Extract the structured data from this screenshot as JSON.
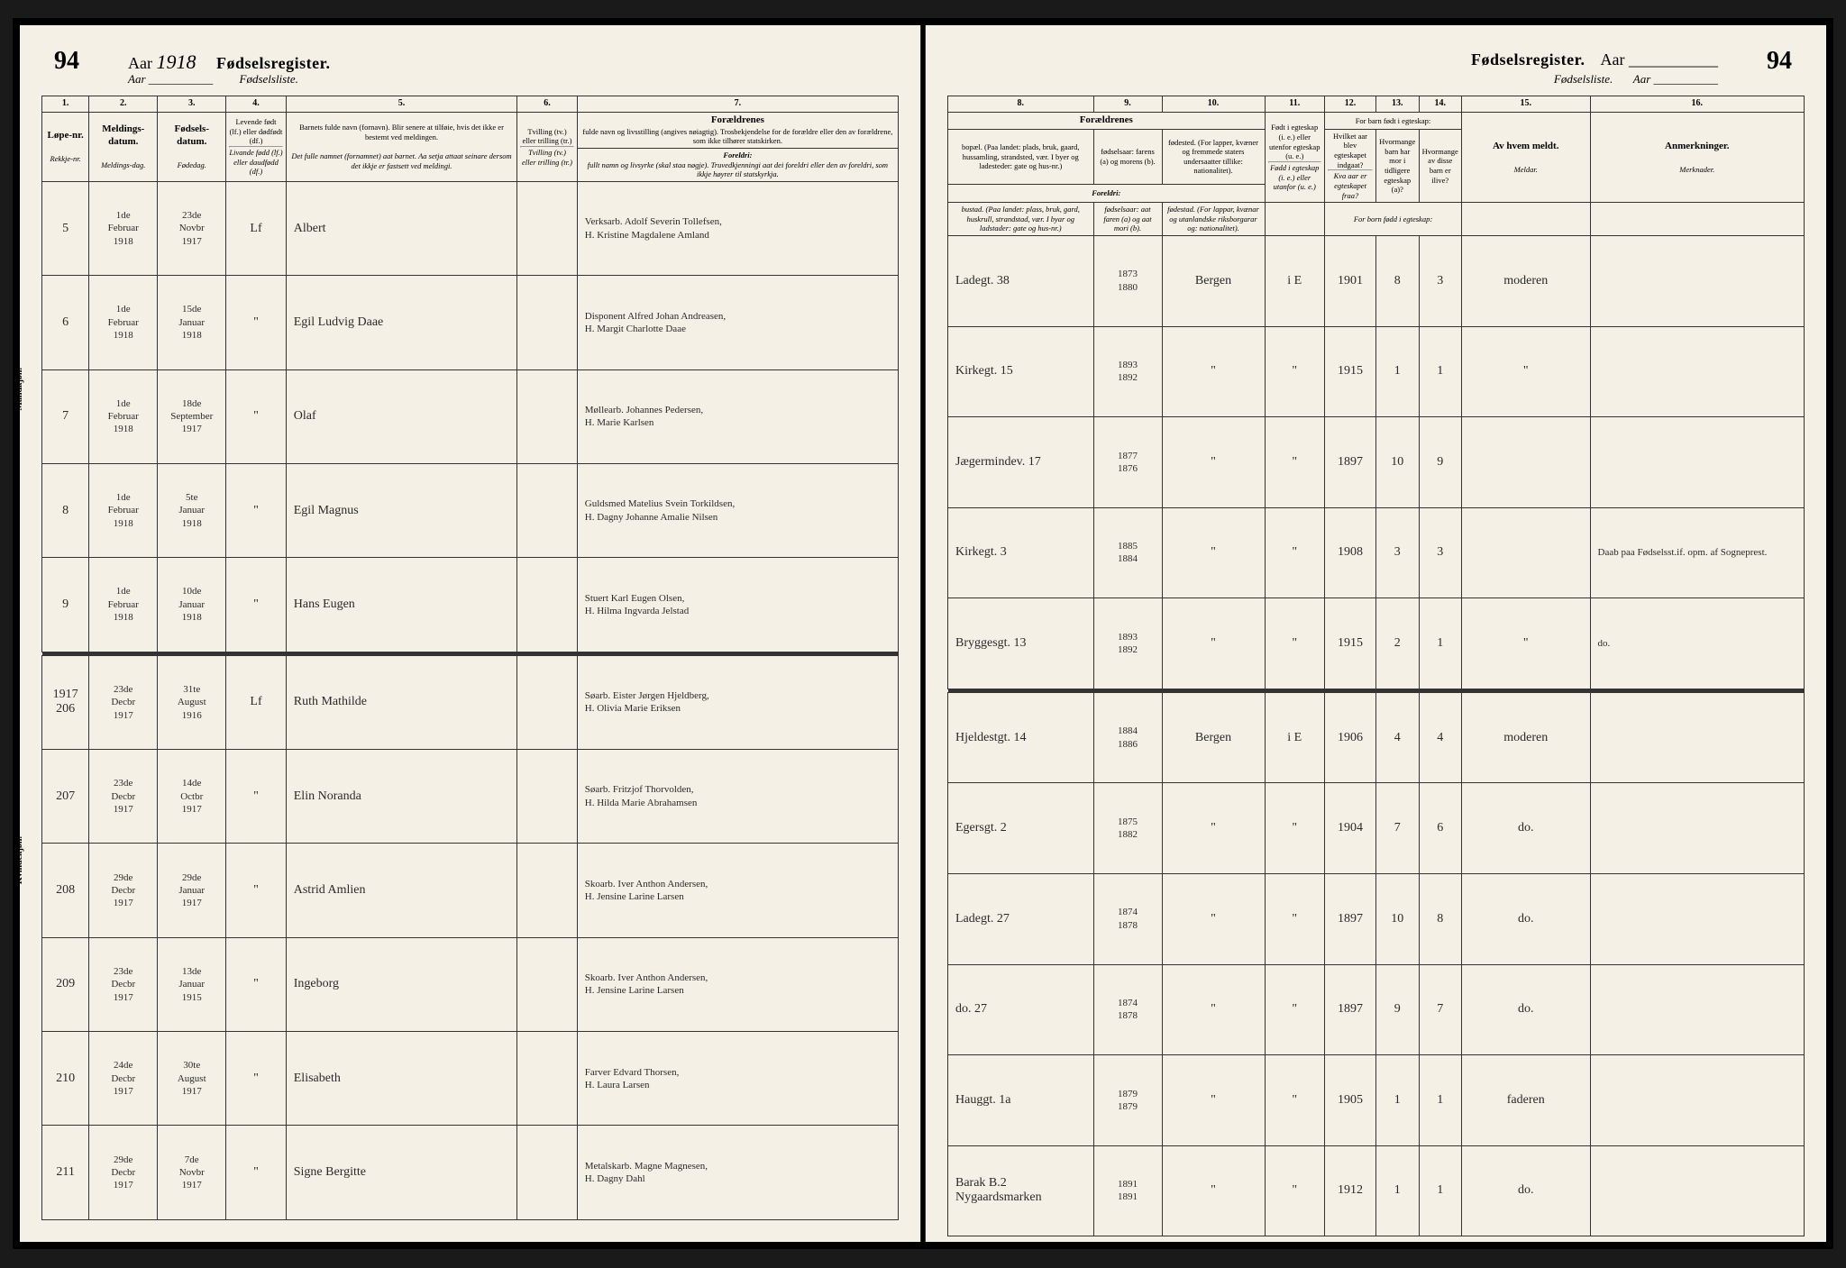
{
  "page_number_left": "94",
  "page_number_right": "94",
  "year": "1918",
  "title_main": "Fødselsregister.",
  "title_sub_year": "Aar",
  "title_sub_list": "Fødselsliste.",
  "side_label_m": "Mandkjøn.",
  "side_label_k": "Kvindekjøn.",
  "left_cols": {
    "c1": {
      "num": "1.",
      "main": "Løpe-nr.",
      "sub": "Rekkje-nr."
    },
    "c2": {
      "num": "2.",
      "main": "Meldings-datum.",
      "sub": "Meldings-dag."
    },
    "c3": {
      "num": "3.",
      "main": "Fødsels-datum.",
      "sub": "Fødedag."
    },
    "c4": {
      "num": "4.",
      "main": "Levende født (lf.) eller dødfødt (df.)",
      "sub": "Livande fødd (lf.) eller daudfødd (df.)"
    },
    "c5": {
      "num": "5.",
      "main": "Barnets fulde navn (fornavn). Blir senere at tilføie, hvis det ikke er bestemt ved meldingen.",
      "sub": "Det fulle namnet (fornamnet) aat barnet. Aa setja attaat seinare dersom det ikkje er fastsett ved meldingi."
    },
    "c6": {
      "num": "6.",
      "main": "Tvilling (tv.) eller trilling (tr.)",
      "sub": "Tvilling (tv.) eller trilling (tr.)"
    },
    "c7": {
      "num": "7.",
      "top": "Foræ­ldrenes",
      "main": "fulde navn og livsstilling (angives nøiagtig). Trosbekjendelse for de forældre eller den av forældrene, som ikke tilhører statskirken.",
      "subtop": "Foreldri:",
      "sub": "fullt namn og livsyrke (skal staa nøgje). Truvedkjenningi aat dei foreldri eller den av foreldri, som ikkje høyrer til statskyrkja."
    }
  },
  "right_cols": {
    "c8": {
      "num": "8.",
      "main": "bopæl. (Paa landet: plads, bruk, gaard, hussamling, strandsted, vær. I byer og ladesteder: gate og hus-nr.)",
      "sub": "bustad. (Paa landet: plass, bruk, gard, huskrull, strandstad, vær. I byar og ladstader: gate og hus-nr.)"
    },
    "c9": {
      "num": "9.",
      "main": "fødselsaar: farens (a) og morens (b).",
      "sub": "fødselsaar: aat faren (a) og aat mori (b)."
    },
    "c10": {
      "num": "10.",
      "main": "fødested. (For lapper, kvæner og fremmede staters undersaatter tillike: nationalitet).",
      "sub": "fødestad. (For lappar, kvænar og utanlandske riksborgarar og: nationalitet)."
    },
    "c_foreldrenes": "Foræ­ldrenes",
    "c_foreldri": "Foreldri:",
    "c11": {
      "num": "11.",
      "main": "Født i egteskap (i. e.) eller utenfor egteskap (u. e.)",
      "sub": "Fødd i egteskap (i. e.) eller utanfor (u. e.)"
    },
    "c12": {
      "num": "12.",
      "main": "Hvilket aar blev egteskapet indgaat?",
      "sub": "Kva aar er egteskapet fraa?"
    },
    "c13": {
      "num": "13.",
      "main": "Hvormange barn har mor i tidligere egteskap (a)?"
    },
    "c14": {
      "num": "14.",
      "main": "Hvormange av disse barn er ilive?"
    },
    "c_forbarn": "For barn født i egteskap:",
    "c_forborn": "For born fødd i egteskap:",
    "c15": {
      "num": "15.",
      "main": "Av hvem meldt.",
      "sub": "Meldar."
    },
    "c16": {
      "num": "16.",
      "main": "Anmerkninger.",
      "sub": "Merknader."
    }
  },
  "rows_m": [
    {
      "nr": "5",
      "meld": "1de Februar 1918",
      "fod": "23de Novbr 1917",
      "lf": "Lf",
      "navn": "Albert",
      "tv": "",
      "foreldre": "Verksarb. Adolf Severin Tollefsen, H. Kristine Magdalene Amland",
      "bopael": "Ladegt. 38",
      "aar": "1873\n1880",
      "sted": "Bergen",
      "ie": "i E",
      "egtaar": "1901",
      "a": "8",
      "b": "3",
      "meldt": "moderen",
      "anm": ""
    },
    {
      "nr": "6",
      "meld": "1de Februar 1918",
      "fod": "15de Januar 1918",
      "lf": "\"",
      "navn": "Egil Ludvig Daae",
      "tv": "",
      "foreldre": "Disponent Alfred Johan Andreasen, H. Margit Charlotte Daae",
      "bopael": "Kirkegt. 15",
      "aar": "1893\n1892",
      "sted": "\"",
      "ie": "\"",
      "egtaar": "1915",
      "a": "1",
      "b": "1",
      "meldt": "\"",
      "anm": ""
    },
    {
      "nr": "7",
      "meld": "1de Februar 1918",
      "fod": "18de September 1917",
      "lf": "\"",
      "navn": "Olaf",
      "tv": "",
      "foreldre": "Møllearb. Johannes Pedersen, H. Marie Karlsen",
      "bopael": "Jægermindev. 17",
      "aar": "1877\n1876",
      "sted": "\"",
      "ie": "\"",
      "egtaar": "1897",
      "a": "10",
      "b": "9",
      "meldt": "",
      "anm": ""
    },
    {
      "nr": "8",
      "meld": "1de Februar 1918",
      "fod": "5te Januar 1918",
      "lf": "\"",
      "navn": "Egil Magnus",
      "tv": "",
      "foreldre": "Guldsmed Matelius Svein Torkildsen, H. Dagny Johanne Amalie Nilsen",
      "bopael": "Kirkegt. 3",
      "aar": "1885\n1884",
      "sted": "\"",
      "ie": "\"",
      "egtaar": "1908",
      "a": "3",
      "b": "3",
      "meldt": "",
      "anm": "Daab paa Fødselsst.if. opm. af Sogneprest."
    },
    {
      "nr": "9",
      "meld": "1de Februar 1918",
      "fod": "10de Januar 1918",
      "lf": "\"",
      "navn": "Hans Eugen",
      "tv": "",
      "foreldre": "Stuert Karl Eugen Olsen, H. Hilma Ingvarda Jelstad",
      "bopael": "Bryggesgt. 13",
      "aar": "1893\n1892",
      "sted": "\"",
      "ie": "\"",
      "egtaar": "1915",
      "a": "2",
      "b": "1",
      "meldt": "\"",
      "anm": "do."
    }
  ],
  "rows_k": [
    {
      "nr": "1917\n206",
      "meld": "23de Decbr 1917",
      "fod": "31te August 1916",
      "lf": "Lf",
      "navn": "Ruth Mathilde",
      "tv": "",
      "foreldre": "Søarb. Eister Jørgen Hjeldberg, H. Olivia Marie Eriksen",
      "bopael": "Hjeldestgt. 14",
      "aar": "1884\n1886",
      "sted": "Bergen",
      "ie": "i E",
      "egtaar": "1906",
      "a": "4",
      "b": "4",
      "meldt": "moderen",
      "anm": ""
    },
    {
      "nr": "207",
      "meld": "23de Decbr 1917",
      "fod": "14de Octbr 1917",
      "lf": "\"",
      "navn": "Elin Noranda",
      "tv": "",
      "foreldre": "Søarb. Fritzjof Thorvolden, H. Hilda Marie Abrahamsen",
      "bopael": "Egersgt. 2",
      "aar": "1875\n1882",
      "sted": "\"",
      "ie": "\"",
      "egtaar": "1904",
      "a": "7",
      "b": "6",
      "meldt": "do.",
      "anm": ""
    },
    {
      "nr": "208",
      "meld": "29de Decbr 1917",
      "fod": "29de Januar 1917",
      "lf": "\"",
      "navn": "Astrid Amlien",
      "tv": "",
      "foreldre": "Skoarb. Iver Anthon Andersen, H. Jensine Larine Larsen",
      "bopael": "Ladegt. 27",
      "aar": "1874\n1878",
      "sted": "\"",
      "ie": "\"",
      "egtaar": "1897",
      "a": "10",
      "b": "8",
      "meldt": "do.",
      "anm": ""
    },
    {
      "nr": "209",
      "meld": "23de Decbr 1917",
      "fod": "13de Januar 1915",
      "lf": "\"",
      "navn": "Ingeborg",
      "tv": "",
      "foreldre": "Skoarb. Iver Anthon Andersen, H. Jensine Larine Larsen",
      "bopael": "do. 27",
      "aar": "1874\n1878",
      "sted": "\"",
      "ie": "\"",
      "egtaar": "1897",
      "a": "9",
      "b": "7",
      "meldt": "do.",
      "anm": ""
    },
    {
      "nr": "210",
      "meld": "24de Decbr 1917",
      "fod": "30te August 1917",
      "lf": "\"",
      "navn": "Elisabeth",
      "tv": "",
      "foreldre": "Farver Edvard Thorsen, H. Laura Larsen",
      "bopael": "Hauggt. 1a",
      "aar": "1879\n1879",
      "sted": "\"",
      "ie": "\"",
      "egtaar": "1905",
      "a": "1",
      "b": "1",
      "meldt": "faderen",
      "anm": ""
    },
    {
      "nr": "211",
      "meld": "29de Decbr 1917",
      "fod": "7de Novbr 1917",
      "lf": "\"",
      "navn": "Signe Bergitte",
      "tv": "",
      "foreldre": "Metalskarb. Magne Magnesen, H. Dagny Dahl",
      "bopael": "Barak B.2 Nygaardsmarken",
      "aar": "1891\n1891",
      "sted": "\"",
      "ie": "\"",
      "egtaar": "1912",
      "a": "1",
      "b": "1",
      "meldt": "do.",
      "anm": ""
    }
  ]
}
